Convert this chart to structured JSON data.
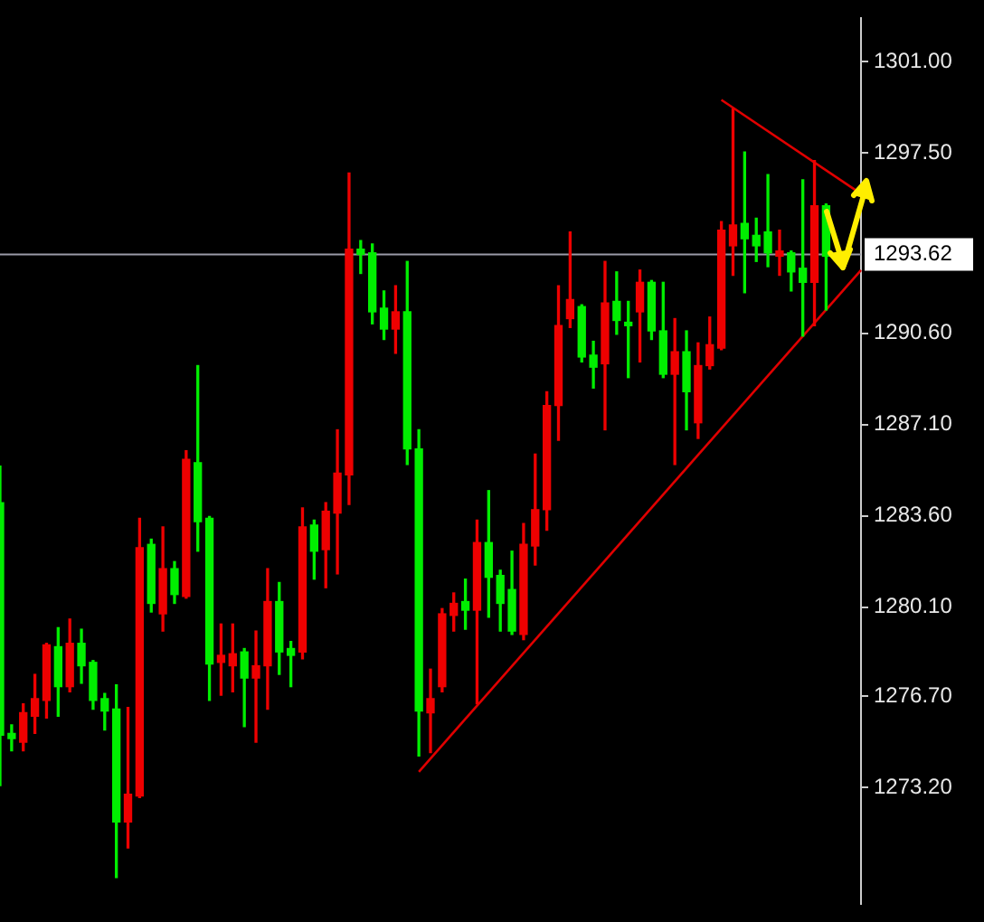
{
  "chart_data": {
    "type": "candlestick",
    "categories": [
      null,
      null,
      null,
      null,
      null,
      null,
      null,
      null,
      null,
      null,
      null,
      null,
      null,
      null,
      null,
      null,
      null,
      null,
      null,
      null,
      null,
      null,
      null,
      null,
      null,
      null,
      null,
      null,
      null,
      null,
      null,
      null,
      null,
      null,
      null,
      null,
      null,
      null,
      null,
      null,
      null,
      null,
      null,
      null,
      null,
      null,
      null,
      null,
      null,
      null,
      null,
      null,
      null,
      null,
      null,
      null,
      null,
      null,
      null,
      null,
      null,
      null,
      null,
      null,
      null,
      null,
      null,
      null,
      null,
      null,
      null,
      null,
      null,
      null,
      null
    ],
    "ohlc": [
      [
        1275.2,
        1285.51,
        1273.27,
        1284.11
      ],
      [
        1275.07,
        1275.6,
        1274.6,
        1275.27
      ],
      [
        1276.06,
        1276.4,
        1274.6,
        1274.93
      ],
      [
        1276.6,
        1277.53,
        1275.27,
        1275.93
      ],
      [
        1278.66,
        1278.72,
        1275.86,
        1276.53
      ],
      [
        1277.06,
        1279.32,
        1275.93,
        1278.59
      ],
      [
        1278.72,
        1279.65,
        1276.86,
        1277.06
      ],
      [
        1277.86,
        1279.26,
        1277.19,
        1278.72
      ],
      [
        1276.53,
        1278.06,
        1276.2,
        1277.99
      ],
      [
        1276.13,
        1276.8,
        1275.4,
        1276.6
      ],
      [
        1271.88,
        1277.13,
        1269.75,
        1276.2
      ],
      [
        1272.94,
        1276.26,
        1270.88,
        1271.88
      ],
      [
        1282.38,
        1283.51,
        1272.81,
        1272.87
      ],
      [
        1280.25,
        1282.71,
        1279.92,
        1282.51
      ],
      [
        1281.58,
        1283.18,
        1279.19,
        1279.85
      ],
      [
        1280.59,
        1281.85,
        1280.25,
        1281.58
      ],
      [
        1285.77,
        1286.1,
        1280.45,
        1280.52
      ],
      [
        1283.38,
        1289.36,
        1282.25,
        1285.64
      ],
      [
        1277.93,
        1283.58,
        1276.53,
        1283.51
      ],
      [
        1278.26,
        1279.46,
        1276.73,
        1277.99
      ],
      [
        1278.32,
        1279.46,
        1276.86,
        1277.86
      ],
      [
        1277.39,
        1278.52,
        1275.53,
        1278.39
      ],
      [
        1277.86,
        1279.19,
        1274.93,
        1277.39
      ],
      [
        1280.32,
        1281.58,
        1276.2,
        1277.86
      ],
      [
        1278.39,
        1281.05,
        1277.53,
        1280.32
      ],
      [
        1278.26,
        1278.79,
        1277.06,
        1278.52
      ],
      [
        1283.18,
        1283.91,
        1278.13,
        1278.39
      ],
      [
        1282.25,
        1283.44,
        1281.18,
        1283.25
      ],
      [
        1283.78,
        1284.11,
        1280.85,
        1282.31
      ],
      [
        1285.24,
        1286.9,
        1281.38,
        1283.71
      ],
      [
        1293.82,
        1296.74,
        1284.04,
        1285.17
      ],
      [
        1293.62,
        1294.15,
        1292.89,
        1293.82
      ],
      [
        1291.42,
        1294.02,
        1290.96,
        1293.68
      ],
      [
        1290.76,
        1292.22,
        1290.36,
        1291.56
      ],
      [
        1291.42,
        1292.42,
        1289.83,
        1290.76
      ],
      [
        1286.17,
        1293.35,
        1285.57,
        1291.42
      ],
      [
        1276.13,
        1286.9,
        1274.4,
        1286.17
      ],
      [
        1276.6,
        1277.73,
        1274.53,
        1276.06
      ],
      [
        1279.85,
        1280.05,
        1276.86,
        1277.06
      ],
      [
        1280.25,
        1280.65,
        1279.19,
        1279.79
      ],
      [
        1279.99,
        1281.18,
        1279.26,
        1280.32
      ],
      [
        1282.58,
        1283.44,
        1276.4,
        1279.99
      ],
      [
        1281.25,
        1284.57,
        1279.72,
        1282.58
      ],
      [
        1280.25,
        1281.52,
        1279.19,
        1281.32
      ],
      [
        1279.19,
        1282.25,
        1279.06,
        1280.78
      ],
      [
        1282.51,
        1283.31,
        1278.86,
        1279.06
      ],
      [
        1283.84,
        1285.97,
        1281.72,
        1282.45
      ],
      [
        1287.83,
        1288.36,
        1283.05,
        1283.84
      ],
      [
        1290.89,
        1292.42,
        1286.5,
        1287.83
      ],
      [
        1291.89,
        1294.48,
        1290.82,
        1291.16
      ],
      [
        1289.69,
        1291.69,
        1289.5,
        1291.62
      ],
      [
        1289.3,
        1290.29,
        1288.5,
        1289.76
      ],
      [
        1291.76,
        1293.35,
        1286.9,
        1289.43
      ],
      [
        1291.09,
        1292.95,
        1290.56,
        1291.82
      ],
      [
        1290.89,
        1291.82,
        1288.9,
        1291.02
      ],
      [
        1292.55,
        1293.02,
        1289.5,
        1291.42
      ],
      [
        1290.69,
        1292.62,
        1290.36,
        1292.55
      ],
      [
        1289.03,
        1292.55,
        1288.9,
        1290.69
      ],
      [
        1289.89,
        1291.16,
        1285.57,
        1289.03
      ],
      [
        1288.36,
        1290.69,
        1286.9,
        1289.89
      ],
      [
        1289.36,
        1290.23,
        1286.57,
        1287.17
      ],
      [
        1290.16,
        1291.22,
        1289.23,
        1289.36
      ],
      [
        1294.55,
        1294.88,
        1289.97,
        1290.03
      ],
      [
        1294.75,
        1299.2,
        1292.82,
        1293.95
      ],
      [
        1294.22,
        1297.54,
        1292.15,
        1294.81
      ],
      [
        1293.95,
        1295.01,
        1293.35,
        1294.35
      ],
      [
        1293.68,
        1296.68,
        1293.15,
        1294.48
      ],
      [
        1293.75,
        1294.55,
        1292.82,
        1293.55
      ],
      [
        1292.95,
        1293.75,
        1292.22,
        1293.68
      ],
      [
        1292.55,
        1296.48,
        1290.49,
        1293.09
      ],
      [
        1295.48,
        1297.21,
        1290.89,
        1292.55
      ],
      [
        1293.55,
        1295.55,
        1291.49,
        1295.48
      ],
      null,
      null,
      null
    ],
    "colors": [
      "#00ee00",
      "#00ee00",
      "#ee0000",
      "#ee0000",
      "#ee0000",
      "#00ee00",
      "#ee0000",
      "#00ee00",
      "#00ee00",
      "#00ee00",
      "#00ee00",
      "#ee0000",
      "#ee0000",
      "#00ee00",
      "#ee0000",
      "#00ee00",
      "#ee0000",
      "#00ee00",
      "#00ee00",
      "#ee0000",
      "#ee0000",
      "#00ee00",
      "#ee0000",
      "#ee0000",
      "#00ee00",
      "#00ee00",
      "#ee0000",
      "#00ee00",
      "#ee0000",
      "#ee0000",
      "#ee0000",
      "#00ee00",
      "#00ee00",
      "#00ee00",
      "#ee0000",
      "#00ee00",
      "#00ee00",
      "#ee0000",
      "#ee0000",
      "#ee0000",
      "#00ee00",
      "#ee0000",
      "#00ee00",
      "#00ee00",
      "#00ee00",
      "#ee0000",
      "#ee0000",
      "#ee0000",
      "#ee0000",
      "#ee0000",
      "#00ee00",
      "#00ee00",
      "#ee0000",
      "#00ee00",
      "#00ee00",
      "#ee0000",
      "#00ee00",
      "#00ee00",
      "#ee0000",
      "#00ee00",
      "#ee0000",
      "#ee0000",
      "#ee0000",
      "#ee0000",
      "#00ee00",
      "#00ee00",
      "#00ee00",
      "#ee0000",
      "#00ee00",
      "#00ee00",
      "#ee0000",
      "#00ee00",
      null,
      null,
      null
    ],
    "series": [
      {
        "type": "line",
        "color": "#e00000",
        "values": [
          null,
          null,
          null,
          null,
          null,
          null,
          null,
          null,
          null,
          null,
          null,
          null,
          null,
          null,
          null,
          null,
          null,
          null,
          null,
          null,
          null,
          null,
          null,
          null,
          null,
          null,
          null,
          null,
          null,
          null,
          null,
          null,
          null,
          null,
          null,
          null,
          1273.8,
          null,
          null,
          null,
          null,
          null,
          null,
          null,
          null,
          null,
          null,
          null,
          null,
          null,
          null,
          null,
          null,
          null,
          null,
          null,
          null,
          null,
          null,
          null,
          null,
          null,
          null,
          null,
          null,
          null,
          null,
          null,
          null,
          null,
          null,
          null,
          null,
          null,
          1293.02
        ]
      },
      {
        "type": "line",
        "color": "#e00000",
        "values": [
          null,
          null,
          null,
          null,
          null,
          null,
          null,
          null,
          null,
          null,
          null,
          null,
          null,
          null,
          null,
          null,
          null,
          null,
          null,
          null,
          null,
          null,
          null,
          null,
          null,
          null,
          null,
          null,
          null,
          null,
          null,
          null,
          null,
          null,
          null,
          null,
          null,
          null,
          null,
          null,
          null,
          null,
          null,
          null,
          null,
          null,
          null,
          null,
          null,
          null,
          null,
          null,
          null,
          null,
          null,
          null,
          null,
          null,
          null,
          null,
          null,
          null,
          1299.54,
          null,
          null,
          null,
          null,
          null,
          null,
          null,
          null,
          null,
          null,
          null,
          1295.94
        ]
      }
    ],
    "ylim": [
      1268.75,
      1302.66
    ],
    "yticks": [
      {
        "value": 1273.2,
        "label": "1273.20"
      },
      {
        "value": 1276.7,
        "label": "1276.70"
      },
      {
        "value": 1280.1,
        "label": "1280.10"
      },
      {
        "value": 1283.6,
        "label": "1283.60"
      },
      {
        "value": 1287.1,
        "label": "1287.10"
      },
      {
        "value": 1290.6,
        "label": "1290.60"
      },
      {
        "value": 1297.5,
        "label": "1297.50"
      },
      {
        "value": 1301.0,
        "label": "1301.00"
      }
    ],
    "tick_labels": "y",
    "ref_lines": [
      {
        "axis": "y",
        "value": 1293.62,
        "label": "1293.62",
        "color": "#9a9aa8"
      }
    ]
  }
}
